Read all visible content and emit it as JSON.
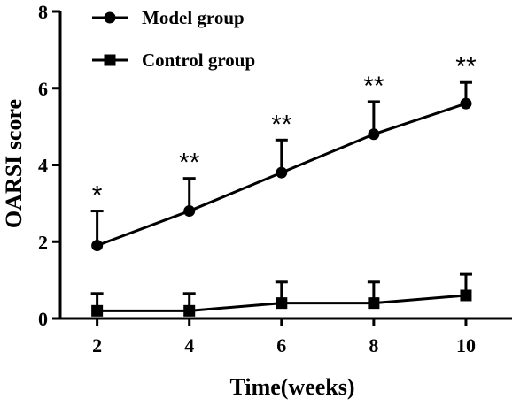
{
  "chart_data": {
    "type": "line",
    "xlabel": "Time(weeks)",
    "ylabel": "OARSI score",
    "x": [
      2,
      4,
      6,
      8,
      10
    ],
    "xlim": [
      1.2,
      11
    ],
    "ylim": [
      0,
      8
    ],
    "y_ticks": [
      0,
      2,
      4,
      6,
      8
    ],
    "grid": false,
    "legend_position": "top-left",
    "series": [
      {
        "name": "Model group",
        "marker": "circle",
        "values": [
          1.9,
          2.8,
          3.8,
          4.8,
          5.6
        ],
        "error": [
          0.9,
          0.85,
          0.85,
          0.85,
          0.55
        ],
        "significance": [
          "*",
          "**",
          "**",
          "**",
          "**"
        ]
      },
      {
        "name": "Control group",
        "marker": "square",
        "values": [
          0.2,
          0.2,
          0.4,
          0.4,
          0.6
        ],
        "error": [
          0.45,
          0.45,
          0.55,
          0.55,
          0.55
        ]
      }
    ],
    "color": "#000000"
  }
}
